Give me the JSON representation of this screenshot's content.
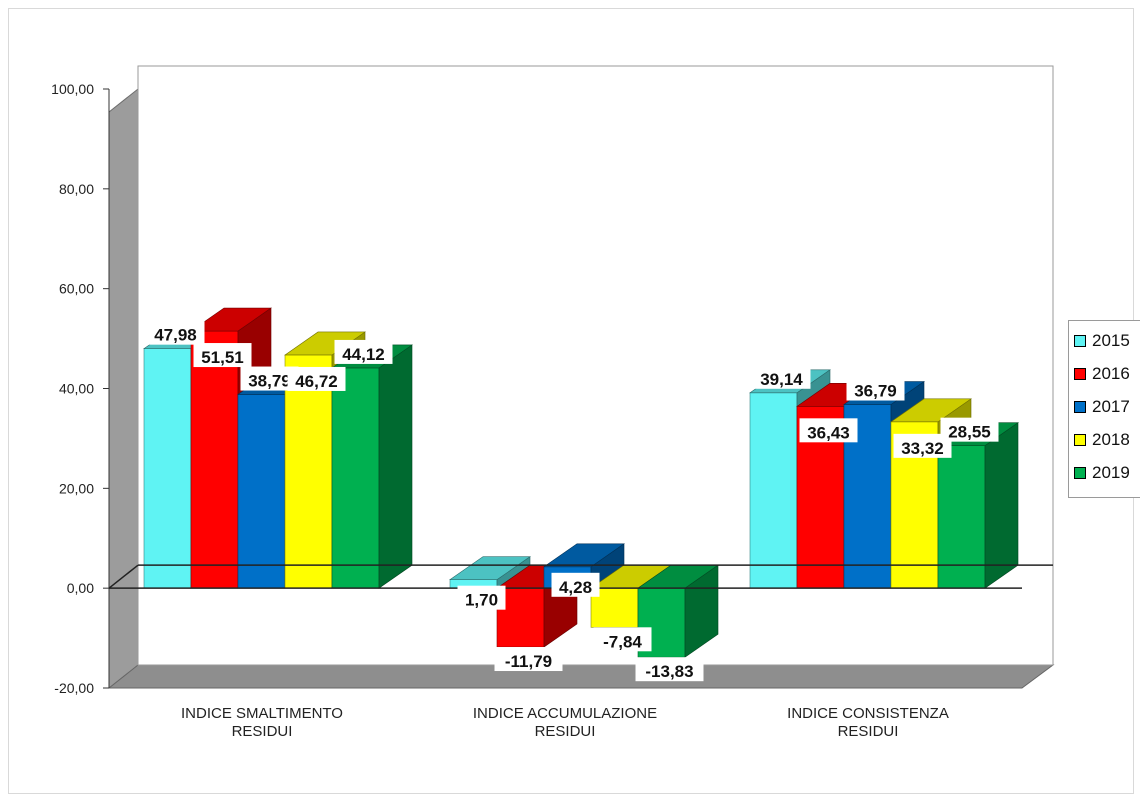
{
  "chart_data": {
    "type": "bar",
    "title": "",
    "xlabel": "",
    "ylabel": "",
    "categories": [
      "INDICE SMALTIMENTO RESIDUI",
      "INDICE ACCUMULAZIONE RESIDUI",
      "INDICE CONSISTENZA RESIDUI"
    ],
    "category_lines": [
      [
        "INDICE SMALTIMENTO",
        "RESIDUI"
      ],
      [
        "INDICE ACCUMULAZIONE",
        "RESIDUI"
      ],
      [
        "INDICE CONSISTENZA",
        "RESIDUI"
      ]
    ],
    "series": [
      {
        "name": "2015",
        "color": "#5ff3f3",
        "values": [
          47.98,
          1.7,
          39.14
        ],
        "value_labels": [
          "47,98",
          "1,70",
          "39,14"
        ]
      },
      {
        "name": "2016",
        "color": "#ff0000",
        "values": [
          51.51,
          -11.79,
          36.43
        ],
        "value_labels": [
          "51,51",
          "-11,79",
          "36,43"
        ]
      },
      {
        "name": "2017",
        "color": "#0070c8",
        "values": [
          38.79,
          4.28,
          36.79
        ],
        "value_labels": [
          "38,79",
          "4,28",
          "36,79"
        ]
      },
      {
        "name": "2018",
        "color": "#ffff00",
        "values": [
          46.72,
          -7.84,
          33.32
        ],
        "value_labels": [
          "46,72",
          "-7,84",
          "33,32"
        ]
      },
      {
        "name": "2019",
        "color": "#00b050",
        "values": [
          44.12,
          -13.83,
          28.55
        ],
        "value_labels": [
          "44,12",
          "-13,83",
          "28,55"
        ]
      }
    ],
    "ylim": [
      -20,
      100
    ],
    "yticks": [
      -20,
      0,
      20,
      40,
      60,
      80,
      100
    ],
    "ytick_labels": [
      "-20,00",
      "0,00",
      "20,00",
      "40,00",
      "60,00",
      "80,00",
      "100,00"
    ],
    "three_d": true,
    "grid": false,
    "legend_position": "right"
  }
}
